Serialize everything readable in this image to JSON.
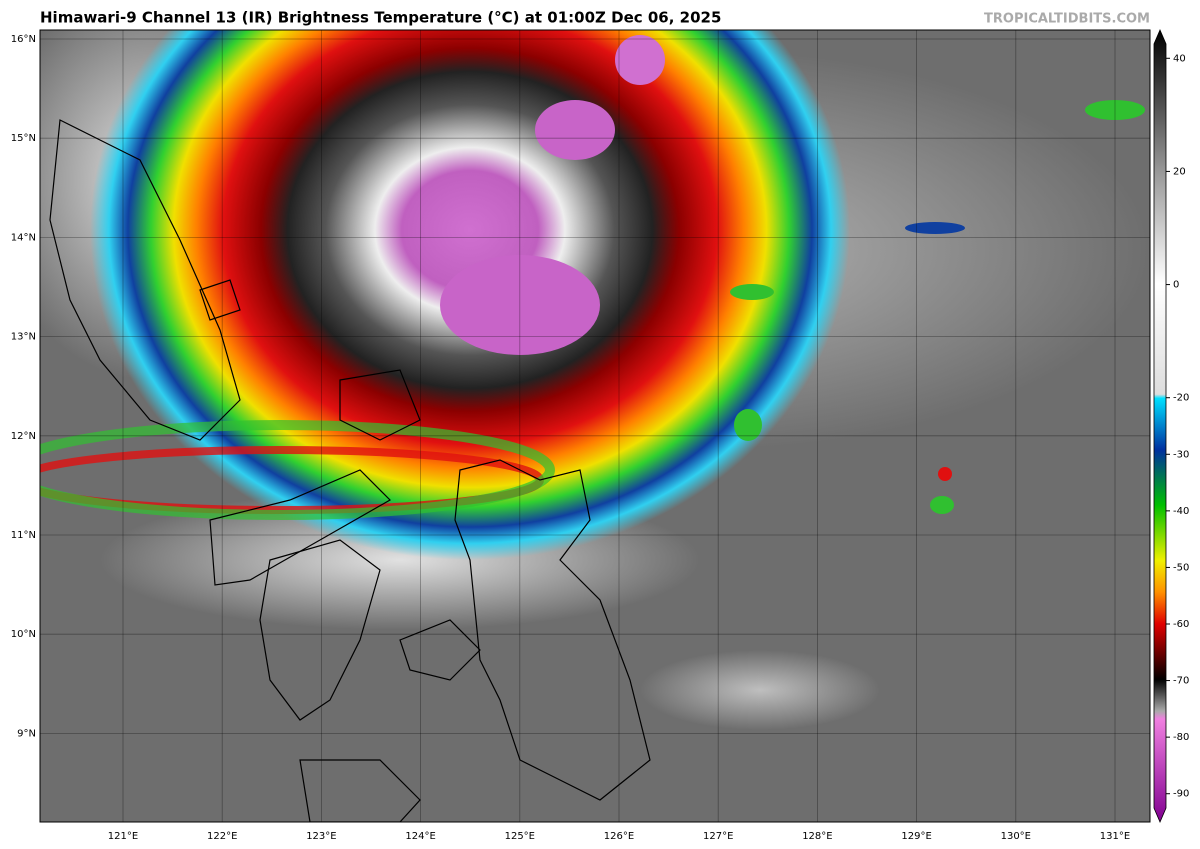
{
  "title": "Himawari-9 Channel 13 (IR) Brightness Temperature (°C) at 01:00Z Dec 06, 2025",
  "credit": "TROPICALTIDBITS.COM",
  "map": {
    "lat_labels": [
      "16°N",
      "15°N",
      "14°N",
      "13°N",
      "12°N",
      "11°N",
      "10°N",
      "9°N"
    ],
    "lon_labels": [
      "121°E",
      "122°E",
      "123°E",
      "124°E",
      "125°E",
      "126°E",
      "127°E",
      "128°E",
      "129°E",
      "130°E",
      "131°E"
    ]
  },
  "colorbar": {
    "lim": [
      -95,
      45
    ],
    "ticks": [
      40,
      20,
      0,
      -20,
      -30,
      -40,
      -50,
      -60,
      -70,
      -80,
      -90
    ]
  }
}
